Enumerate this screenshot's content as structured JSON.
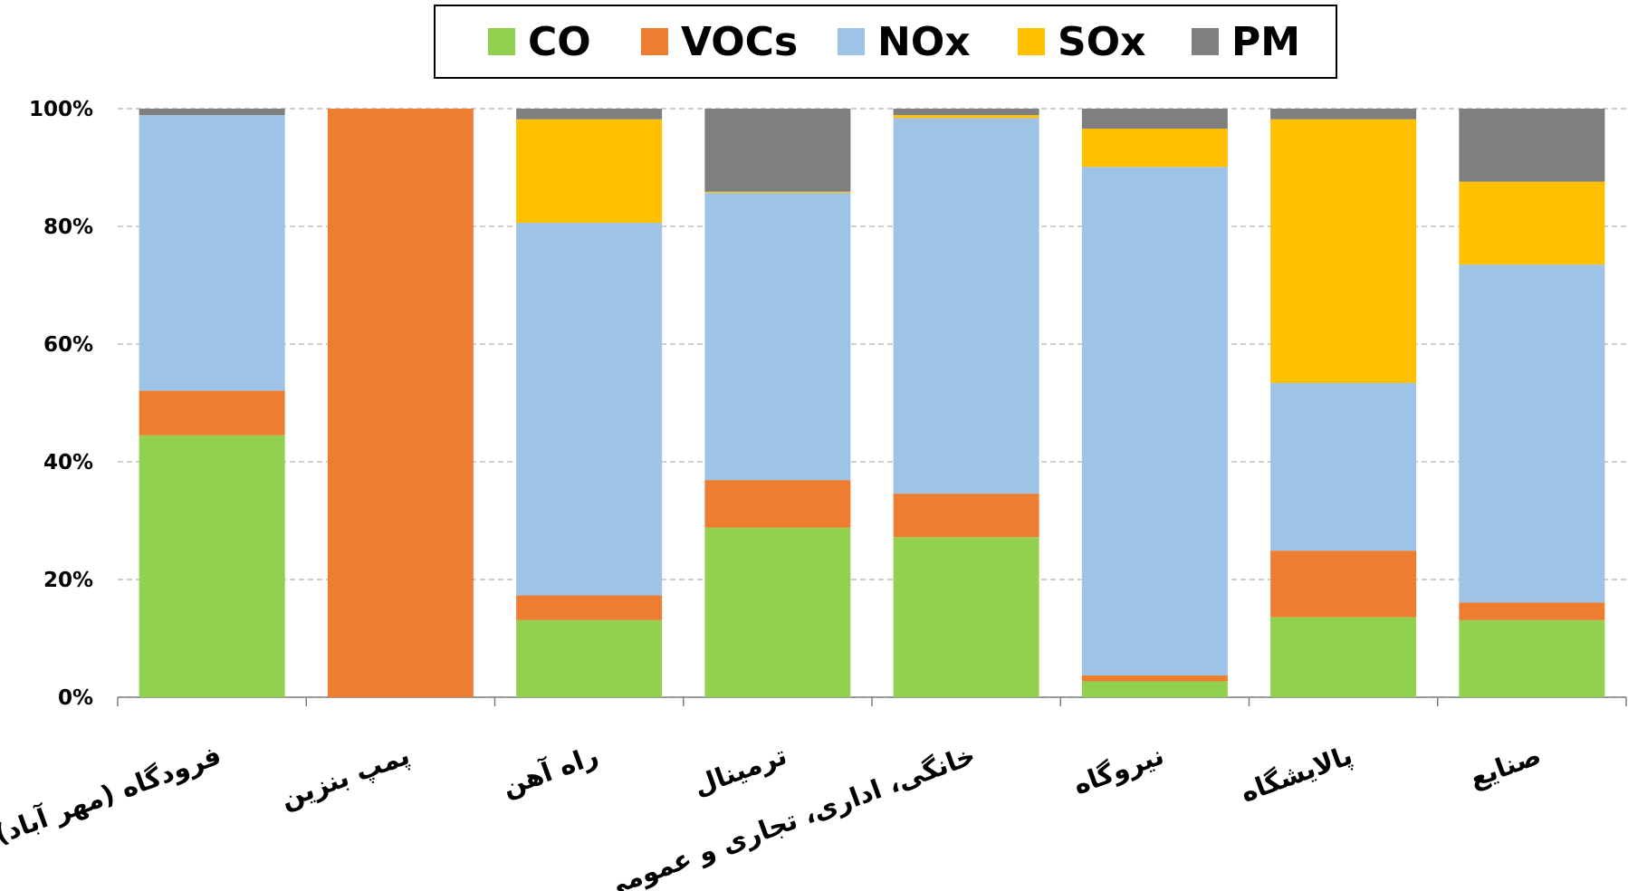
{
  "chart_data": {
    "type": "stacked_bar",
    "categories": [
      "فرودگاه (مهر آباد)",
      "پمپ بنزین",
      "راه آهن",
      "ترمینال",
      "خانگی، اداری، تجاری و عمومی",
      "نیروگاه",
      "پالایشگاه",
      "صنایع"
    ],
    "series": [
      {
        "name": "CO",
        "color": "#92d050",
        "values": [
          44.5,
          0,
          13.1,
          28.8,
          27.2,
          2.7,
          13.6,
          13.1
        ]
      },
      {
        "name": "VOCs",
        "color": "#ed7d31",
        "values": [
          7.6,
          100,
          4.2,
          8.1,
          7.4,
          1.0,
          11.3,
          3.0
        ]
      },
      {
        "name": "NOx",
        "color": "#9dc3e6",
        "values": [
          46.8,
          0,
          63.3,
          48.8,
          63.8,
          86.4,
          28.5,
          57.4
        ]
      },
      {
        "name": "SOx",
        "color": "#ffc000",
        "values": [
          0,
          0,
          17.6,
          0.2,
          0.5,
          6.5,
          44.8,
          14.1
        ]
      },
      {
        "name": "PM",
        "color": "#7f7f7f",
        "values": [
          1.1,
          0,
          1.8,
          14.1,
          1.1,
          3.4,
          1.8,
          12.4
        ]
      }
    ],
    "ylim": [
      0,
      100
    ],
    "yticks": [
      {
        "value": 0,
        "label": "0%"
      },
      {
        "value": 20,
        "label": "20%"
      },
      {
        "value": 40,
        "label": "40%"
      },
      {
        "value": 60,
        "label": "60%"
      },
      {
        "value": 80,
        "label": "80%"
      },
      {
        "value": 100,
        "label": "100%"
      }
    ],
    "grid": true,
    "legend": "top"
  }
}
